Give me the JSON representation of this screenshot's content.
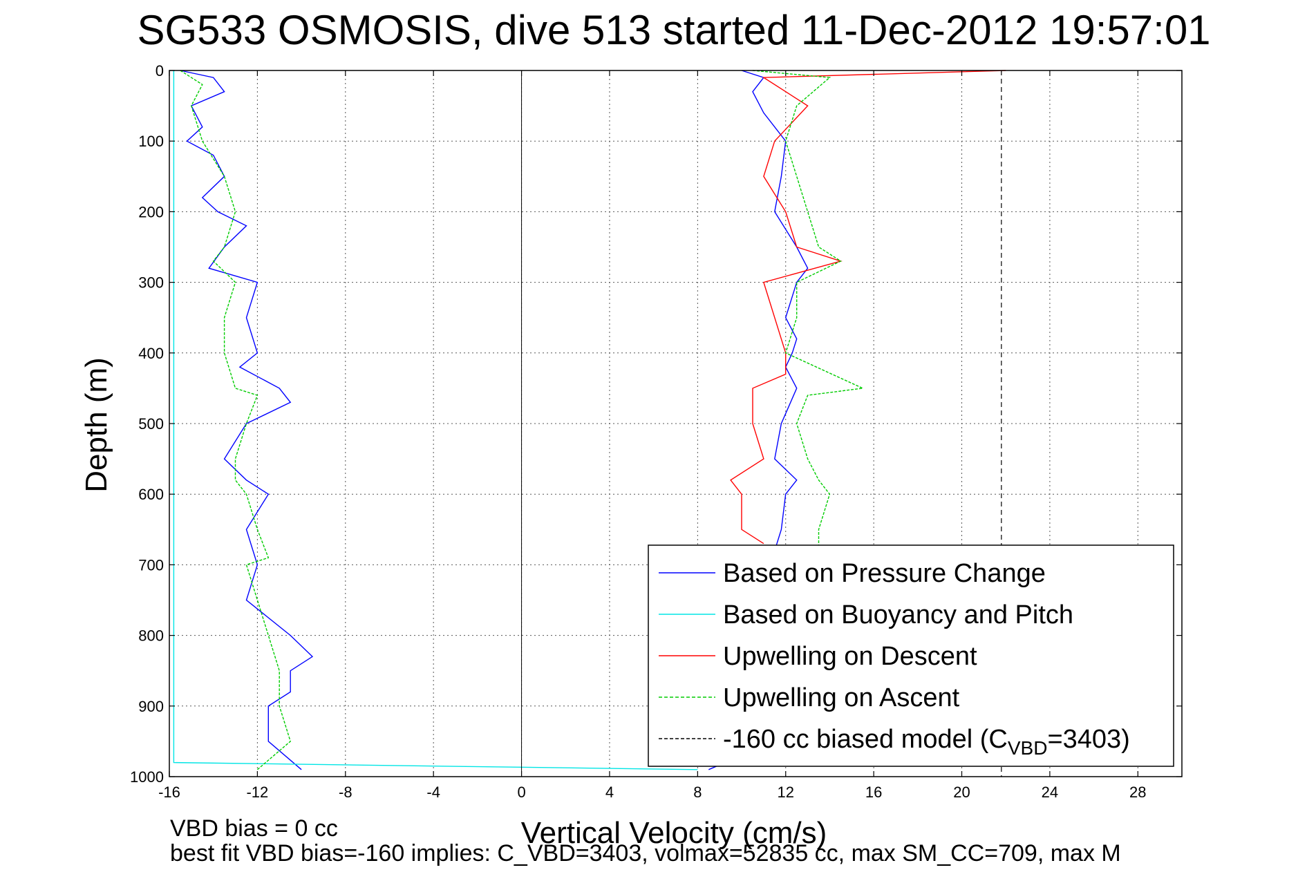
{
  "chart_data": {
    "type": "line",
    "title": "SG533 OSMOSIS, dive 513 started 11-Dec-2012 19:57:01",
    "xlabel": "Vertical Velocity (cm/s)",
    "ylabel": "Depth (m)",
    "xlim": [
      -16,
      30
    ],
    "ylim": [
      1000,
      0
    ],
    "xticks": [
      "-16",
      "-12",
      "-8",
      "-4",
      "0",
      "4",
      "8",
      "12",
      "16",
      "20",
      "24",
      "28"
    ],
    "yticks": [
      "0",
      "100",
      "200",
      "300",
      "400",
      "500",
      "600",
      "700",
      "800",
      "900",
      "1000"
    ],
    "grid": true,
    "legend_position": "bottom-right",
    "legend": [
      {
        "label": "Based on Pressure Change",
        "color": "#0000ff",
        "dash": "solid"
      },
      {
        "label": "Based on Buoyancy and Pitch",
        "color": "#00e5e5",
        "dash": "solid"
      },
      {
        "label": "Upwelling on Descent",
        "color": "#ff0000",
        "dash": "solid"
      },
      {
        "label": "Upwelling on Ascent",
        "color": "#00cc00",
        "dash": "dashed"
      },
      {
        "label_prefix": "-160 cc biased model (C",
        "label_sub": "VBD",
        "label_suffix": "=3403)",
        "color": "#000000",
        "dash": "dashed"
      }
    ],
    "series": [
      {
        "name": "Based on Pressure Change (descent)",
        "color": "#0000ff",
        "depth": [
          0,
          10,
          30,
          50,
          80,
          100,
          120,
          150,
          180,
          200,
          220,
          250,
          280,
          300,
          350,
          400,
          420,
          450,
          470,
          500,
          550,
          580,
          600,
          650,
          700,
          750,
          800,
          830,
          850,
          880,
          900,
          950,
          990
        ],
        "velocity": [
          -15.5,
          -14.0,
          -13.5,
          -15.0,
          -14.5,
          -15.2,
          -14.0,
          -13.5,
          -14.5,
          -13.8,
          -12.5,
          -13.5,
          -14.2,
          -12.0,
          -12.5,
          -12.0,
          -12.8,
          -11.0,
          -10.5,
          -12.5,
          -13.5,
          -12.5,
          -11.5,
          -12.5,
          -12.0,
          -12.5,
          -10.5,
          -9.5,
          -10.5,
          -10.5,
          -11.5,
          -11.5,
          -10.0
        ]
      },
      {
        "name": "Based on Pressure Change (ascent)",
        "color": "#0000ff",
        "depth": [
          990,
          950,
          900,
          850,
          800,
          750,
          700,
          680,
          650,
          600,
          580,
          550,
          500,
          450,
          420,
          400,
          380,
          350,
          300,
          280,
          250,
          200,
          150,
          100,
          60,
          30,
          10,
          0
        ],
        "velocity": [
          8.5,
          11.5,
          11.5,
          11.8,
          12.0,
          12.0,
          12.0,
          11.5,
          11.8,
          12.0,
          12.5,
          11.5,
          11.8,
          12.5,
          12.0,
          12.3,
          12.5,
          12.0,
          12.5,
          13.0,
          12.5,
          11.5,
          11.8,
          12.0,
          11.0,
          10.5,
          11.0,
          10.0
        ]
      },
      {
        "name": "Based on Buoyancy and Pitch (descent)",
        "color": "#00e5e5",
        "depth": [
          0,
          10,
          200,
          600,
          980,
          990
        ],
        "velocity": [
          -15.8,
          -15.8,
          -15.8,
          -15.8,
          -15.8,
          8.0
        ]
      },
      {
        "name": "Upwelling on Descent",
        "color": "#ff0000",
        "depth": [
          0,
          10,
          50,
          100,
          150,
          200,
          250,
          270,
          300,
          350,
          400,
          430,
          450,
          500,
          550,
          580,
          600,
          650,
          670
        ],
        "velocity": [
          22.0,
          11.0,
          13.0,
          11.5,
          11.0,
          12.0,
          12.5,
          14.5,
          11.0,
          11.5,
          12.0,
          12.0,
          10.5,
          10.5,
          11.0,
          9.5,
          10.0,
          10.0,
          11.0
        ]
      },
      {
        "name": "Upwelling on Ascent",
        "color": "#00cc00",
        "depth": [
          990,
          950,
          900,
          850,
          800,
          750,
          700,
          690,
          650,
          600,
          580,
          550,
          500,
          460,
          450,
          400,
          350,
          300,
          270,
          250,
          200,
          150,
          100,
          50,
          20,
          10,
          0
        ],
        "velocity": [
          -12.0,
          -10.5,
          -11.0,
          -11.0,
          -11.5,
          -12.0,
          -12.5,
          -11.5,
          -12.0,
          -12.5,
          -13.0,
          -13.0,
          -12.5,
          -12.0,
          -13.0,
          -13.5,
          -13.5,
          -13.0,
          -14.0,
          -13.5,
          -13.0,
          -13.5,
          -14.5,
          -15.0,
          -14.5,
          -15.0,
          -15.5
        ]
      },
      {
        "name": "Upwelling on Ascent (right)",
        "color": "#00cc00",
        "depth": [
          0,
          10,
          50,
          100,
          150,
          200,
          250,
          270,
          300,
          350,
          400,
          450,
          460,
          500,
          550,
          580,
          600,
          650,
          680
        ],
        "velocity": [
          10.5,
          14.0,
          12.5,
          12.0,
          12.5,
          13.0,
          13.5,
          14.5,
          12.5,
          12.5,
          12.0,
          15.5,
          13.0,
          12.5,
          13.0,
          13.5,
          14.0,
          13.5,
          13.5
        ]
      }
    ],
    "reference_line": {
      "x": 21.8,
      "color": "#000000",
      "dash": "dashed"
    }
  },
  "footer": {
    "line1": "VBD bias = 0 cc",
    "line2": "best fit VBD bias=-160 implies: C_VBD=3403, volmax=52835 cc, max SM_CC=709, max M"
  }
}
